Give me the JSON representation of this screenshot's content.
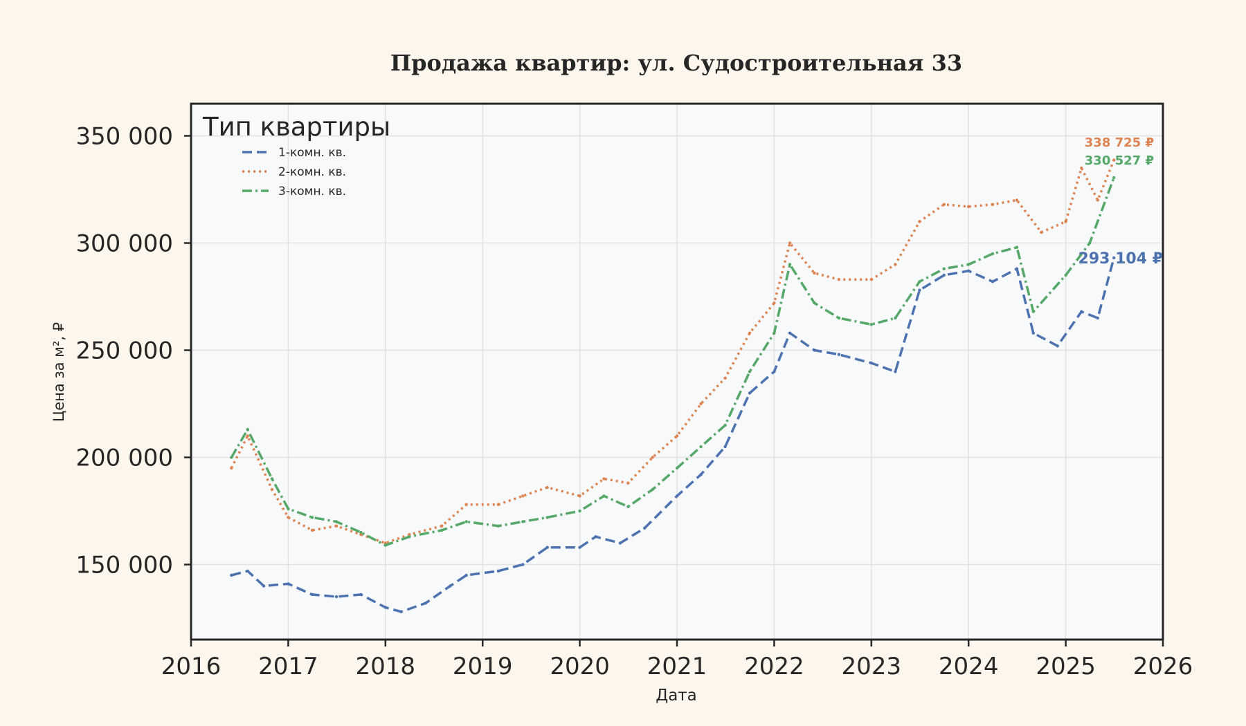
{
  "chart_data": {
    "type": "line",
    "title": "Продажа квартир: ул. Судостроительная 33",
    "xlabel": "Дата",
    "ylabel": "Цена за м², ₽",
    "xlim": [
      "2016-01-01",
      "2026-01-01"
    ],
    "ylim": [
      115000,
      365000
    ],
    "x_ticks": [
      "2016",
      "2017",
      "2018",
      "2019",
      "2020",
      "2021",
      "2022",
      "2023",
      "2024",
      "2025",
      "2026"
    ],
    "y_ticks": [
      150000,
      200000,
      250000,
      300000,
      350000
    ],
    "y_tick_labels": [
      "150 000",
      "200 000",
      "250 000",
      "300 000",
      "350 000"
    ],
    "grid": true,
    "legend": {
      "title": "Тип квартиры",
      "placement": "top-left"
    },
    "series": [
      {
        "name": "1-комн. кв.",
        "color": "#4c72b0",
        "dash": "dash",
        "end_label": "293 104 ₽",
        "points": [
          [
            "2016-06-01",
            145000
          ],
          [
            "2016-08-01",
            147000
          ],
          [
            "2016-10-01",
            140000
          ],
          [
            "2017-01-01",
            141000
          ],
          [
            "2017-04-01",
            136000
          ],
          [
            "2017-07-01",
            135000
          ],
          [
            "2017-10-01",
            136000
          ],
          [
            "2018-01-01",
            130000
          ],
          [
            "2018-03-01",
            128000
          ],
          [
            "2018-06-01",
            132000
          ],
          [
            "2018-09-01",
            140000
          ],
          [
            "2018-11-01",
            145000
          ],
          [
            "2019-03-01",
            147000
          ],
          [
            "2019-06-01",
            150000
          ],
          [
            "2019-09-01",
            158000
          ],
          [
            "2020-01-01",
            158000
          ],
          [
            "2020-03-01",
            163000
          ],
          [
            "2020-06-01",
            160000
          ],
          [
            "2020-09-01",
            167000
          ],
          [
            "2021-01-01",
            182000
          ],
          [
            "2021-04-01",
            192000
          ],
          [
            "2021-07-01",
            205000
          ],
          [
            "2021-10-01",
            230000
          ],
          [
            "2022-01-01",
            240000
          ],
          [
            "2022-03-01",
            258000
          ],
          [
            "2022-06-01",
            250000
          ],
          [
            "2022-09-01",
            248000
          ],
          [
            "2023-01-01",
            244000
          ],
          [
            "2023-04-01",
            240000
          ],
          [
            "2023-07-01",
            278000
          ],
          [
            "2023-10-01",
            285000
          ],
          [
            "2024-01-01",
            287000
          ],
          [
            "2024-04-01",
            282000
          ],
          [
            "2024-07-01",
            288000
          ],
          [
            "2024-09-01",
            258000
          ],
          [
            "2024-12-01",
            252000
          ],
          [
            "2025-03-01",
            268000
          ],
          [
            "2025-05-01",
            265000
          ],
          [
            "2025-07-01",
            293104
          ]
        ]
      },
      {
        "name": "2-комн. кв.",
        "color": "#dd8452",
        "dash": "dot",
        "end_label": "338 725 ₽",
        "points": [
          [
            "2016-06-01",
            195000
          ],
          [
            "2016-08-01",
            210000
          ],
          [
            "2016-11-01",
            185000
          ],
          [
            "2017-01-01",
            172000
          ],
          [
            "2017-04-01",
            166000
          ],
          [
            "2017-07-01",
            168000
          ],
          [
            "2017-10-01",
            164000
          ],
          [
            "2018-01-01",
            160000
          ],
          [
            "2018-04-01",
            164000
          ],
          [
            "2018-08-01",
            168000
          ],
          [
            "2018-11-01",
            178000
          ],
          [
            "2019-03-01",
            178000
          ],
          [
            "2019-06-01",
            182000
          ],
          [
            "2019-09-01",
            186000
          ],
          [
            "2020-01-01",
            182000
          ],
          [
            "2020-04-01",
            190000
          ],
          [
            "2020-07-01",
            188000
          ],
          [
            "2020-10-01",
            200000
          ],
          [
            "2021-01-01",
            210000
          ],
          [
            "2021-04-01",
            225000
          ],
          [
            "2021-07-01",
            237000
          ],
          [
            "2021-10-01",
            258000
          ],
          [
            "2022-01-01",
            272000
          ],
          [
            "2022-03-01",
            300000
          ],
          [
            "2022-06-01",
            286000
          ],
          [
            "2022-09-01",
            283000
          ],
          [
            "2023-01-01",
            283000
          ],
          [
            "2023-04-01",
            290000
          ],
          [
            "2023-07-01",
            310000
          ],
          [
            "2023-10-01",
            318000
          ],
          [
            "2024-01-01",
            317000
          ],
          [
            "2024-04-01",
            318000
          ],
          [
            "2024-07-01",
            320000
          ],
          [
            "2024-10-01",
            305000
          ],
          [
            "2025-01-01",
            310000
          ],
          [
            "2025-03-01",
            335000
          ],
          [
            "2025-05-01",
            320000
          ],
          [
            "2025-07-01",
            338725
          ]
        ]
      },
      {
        "name": "3-комн. кв.",
        "color": "#55a868",
        "dash": "dashdot",
        "end_label": "330 527 ₽",
        "points": [
          [
            "2016-06-01",
            200000
          ],
          [
            "2016-08-01",
            213000
          ],
          [
            "2016-11-01",
            190000
          ],
          [
            "2017-01-01",
            176000
          ],
          [
            "2017-04-01",
            172000
          ],
          [
            "2017-07-01",
            170000
          ],
          [
            "2017-10-01",
            165000
          ],
          [
            "2018-01-01",
            159000
          ],
          [
            "2018-04-01",
            163000
          ],
          [
            "2018-08-01",
            166000
          ],
          [
            "2018-11-01",
            170000
          ],
          [
            "2019-03-01",
            168000
          ],
          [
            "2019-06-01",
            170000
          ],
          [
            "2019-09-01",
            172000
          ],
          [
            "2020-01-01",
            175000
          ],
          [
            "2020-04-01",
            182000
          ],
          [
            "2020-07-01",
            177000
          ],
          [
            "2020-10-01",
            185000
          ],
          [
            "2021-01-01",
            195000
          ],
          [
            "2021-04-01",
            205000
          ],
          [
            "2021-07-01",
            215000
          ],
          [
            "2021-10-01",
            240000
          ],
          [
            "2022-01-01",
            258000
          ],
          [
            "2022-03-01",
            290000
          ],
          [
            "2022-06-01",
            272000
          ],
          [
            "2022-09-01",
            265000
          ],
          [
            "2023-01-01",
            262000
          ],
          [
            "2023-04-01",
            265000
          ],
          [
            "2023-07-01",
            282000
          ],
          [
            "2023-10-01",
            288000
          ],
          [
            "2024-01-01",
            290000
          ],
          [
            "2024-04-01",
            295000
          ],
          [
            "2024-07-01",
            298000
          ],
          [
            "2024-09-01",
            268000
          ],
          [
            "2025-01-01",
            285000
          ],
          [
            "2025-04-01",
            300000
          ],
          [
            "2025-07-01",
            330527
          ]
        ]
      }
    ]
  }
}
